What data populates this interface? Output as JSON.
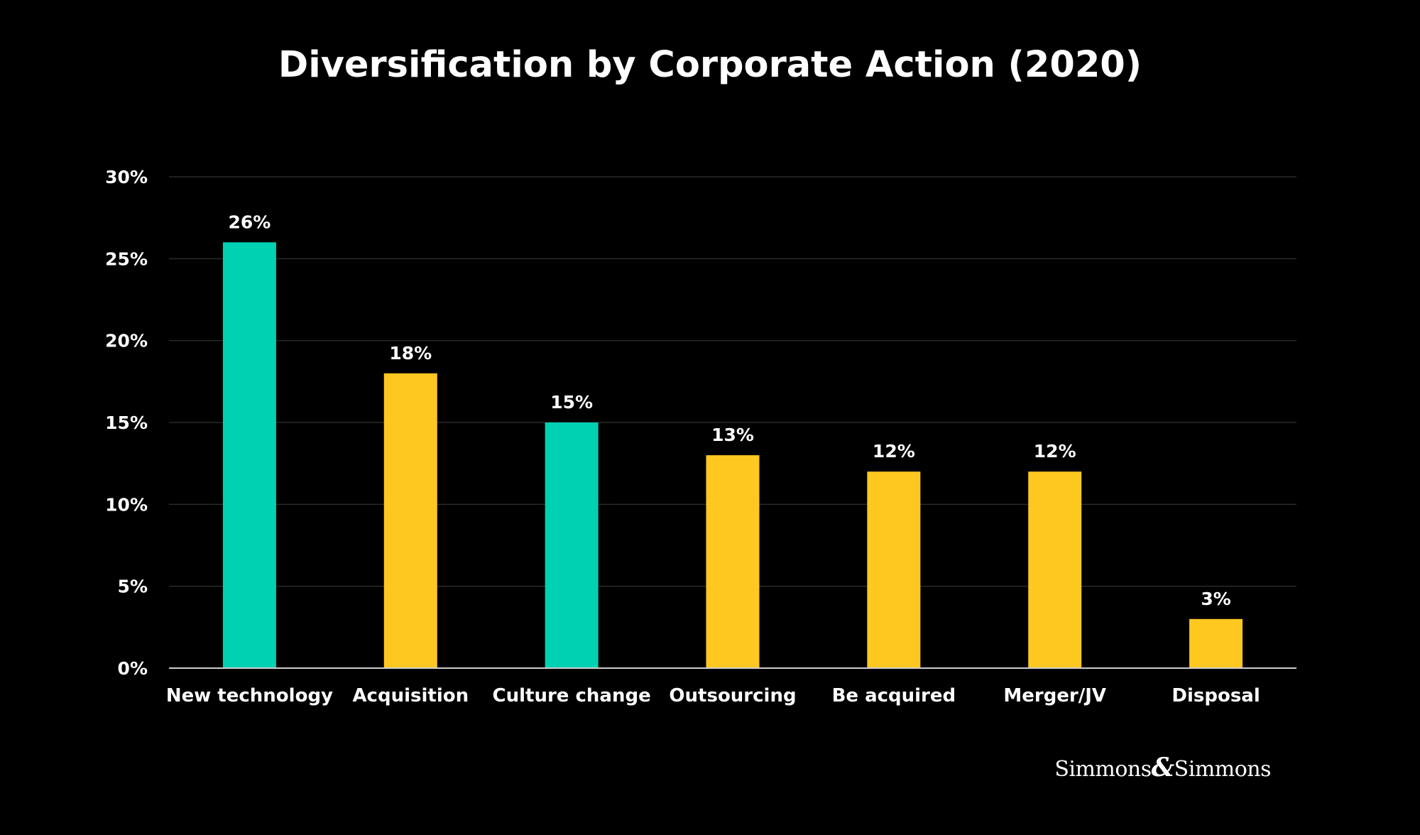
{
  "chart_data": {
    "type": "bar",
    "title": "Diversification by Corporate Action (2020)",
    "xlabel": "",
    "ylabel": "",
    "categories": [
      "New technology",
      "Acquisition",
      "Culture change",
      "Outsourcing",
      "Be acquired",
      "Merger/JV",
      "Disposal"
    ],
    "values": [
      26,
      18,
      15,
      13,
      12,
      12,
      3
    ],
    "value_labels": [
      "26%",
      "18%",
      "15%",
      "13%",
      "12%",
      "12%",
      "3%"
    ],
    "bar_colors": [
      "#00D1B2",
      "#FFC821",
      "#00D1B2",
      "#FFC821",
      "#FFC821",
      "#FFC821",
      "#FFC821"
    ],
    "ylim": [
      0,
      30
    ],
    "yticks": [
      0,
      5,
      10,
      15,
      20,
      25,
      30
    ],
    "ytick_labels": [
      "0%",
      "5%",
      "10%",
      "15%",
      "20%",
      "25%",
      "30%"
    ],
    "grid": true
  },
  "colors": {
    "background": "#000000",
    "teal": "#00D1B2",
    "yellow": "#FFC821",
    "gridline": "#2a2a2a",
    "axis": "#cccccc",
    "text": "#ffffff"
  },
  "brand": {
    "left": "Simmons",
    "amp": "&",
    "right": "Simmons"
  }
}
